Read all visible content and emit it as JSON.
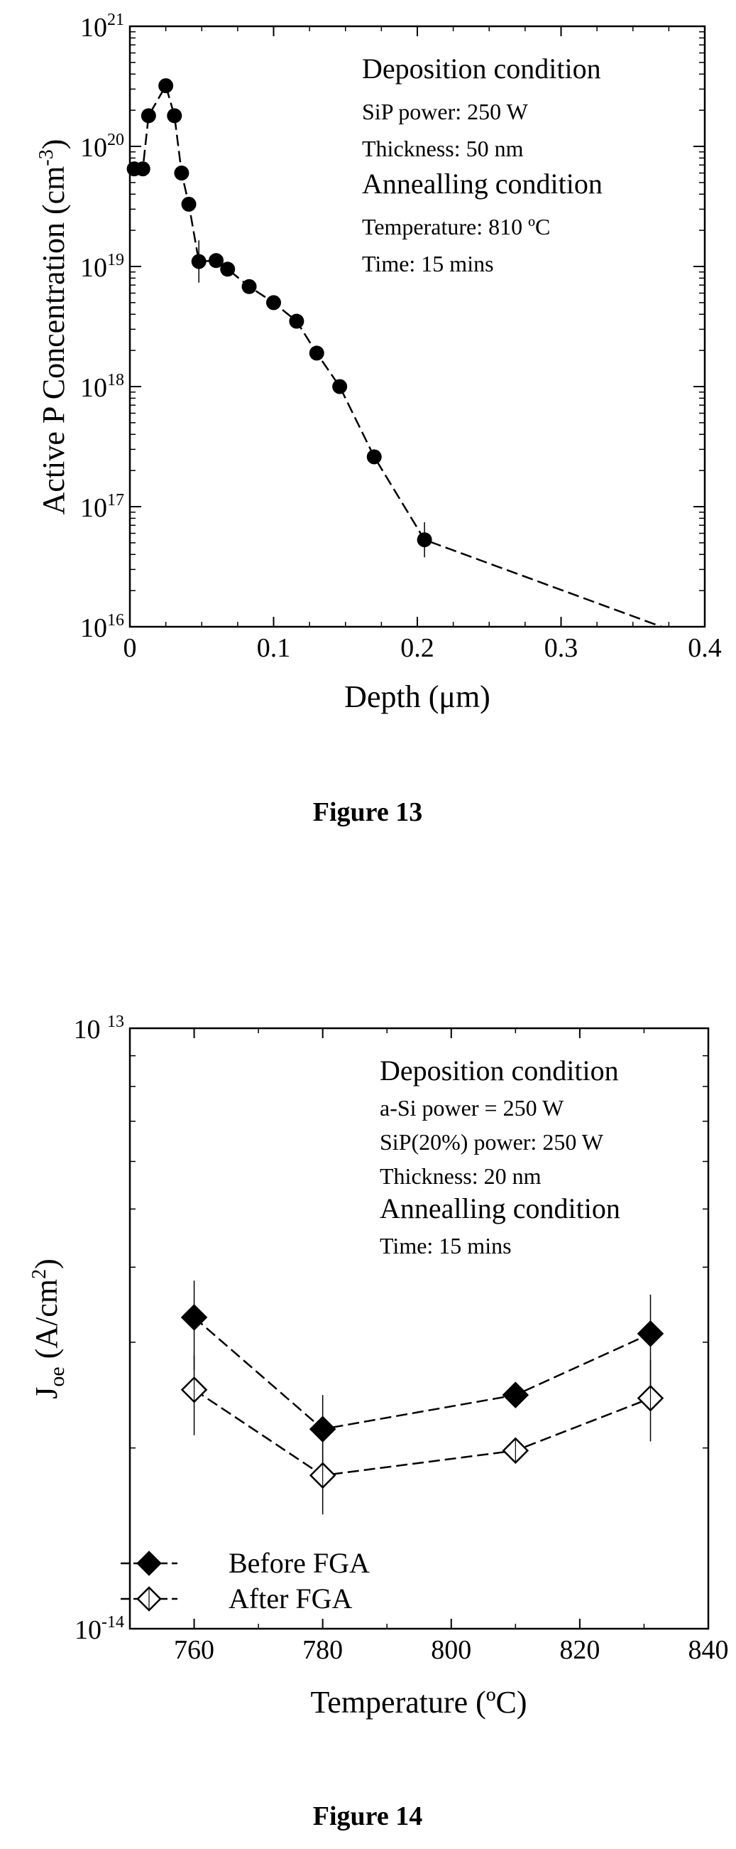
{
  "chart_data": [
    {
      "type": "line",
      "caption": "Figure 13",
      "xlabel": "Depth (μm)",
      "ylabel_main": "Active P Concentration (cm",
      "ylabel_sup": "-3",
      "ylabel_close": ")",
      "x_scale": "linear",
      "y_scale": "log",
      "xlim": [
        0,
        0.4
      ],
      "ylim": [
        1e+16,
        1e+21
      ],
      "x_ticks": [
        "0",
        "0.1",
        "0.2",
        "0.3",
        "0.4"
      ],
      "y_ticks": [
        {
          "base": "10",
          "exp": "16"
        },
        {
          "base": "10",
          "exp": "17"
        },
        {
          "base": "10",
          "exp": "18"
        },
        {
          "base": "10",
          "exp": "19"
        },
        {
          "base": "10",
          "exp": "20"
        },
        {
          "base": "10",
          "exp": "21"
        }
      ],
      "annotations": [
        {
          "text": "Deposition condition",
          "size": "large"
        },
        {
          "text": "SiP power: 250 W",
          "size": "small"
        },
        {
          "text": "Thickness: 50 nm",
          "size": "small"
        },
        {
          "text": "Annealling condition",
          "size": "large"
        },
        {
          "text": "Temperature: 810 ºC",
          "size": "small"
        },
        {
          "text": "Time: 15 mins",
          "size": "small"
        }
      ],
      "series": [
        {
          "marker": "filled-circle",
          "line": "dashed",
          "x": [
            0.003,
            0.009,
            0.013,
            0.025,
            0.031,
            0.036,
            0.041,
            0.048,
            0.06,
            0.068,
            0.083,
            0.1,
            0.116,
            0.13,
            0.146,
            0.17,
            0.205
          ],
          "y": [
            6.5e+19,
            6.5e+19,
            1.8e+20,
            3.2e+20,
            1.8e+20,
            6e+19,
            3.3e+19,
            1.1e+19,
            1.12e+19,
            9.5e+18,
            6.8e+18,
            5e+18,
            3.5e+18,
            1.9e+18,
            1e+18,
            2.6e+17,
            5.3e+16
          ],
          "error_y_factor": [
            1,
            1,
            1,
            1,
            1,
            1,
            1,
            1.5,
            1,
            1,
            1,
            1,
            1,
            1,
            1,
            1,
            1.4
          ]
        }
      ],
      "line_extension": {
        "x": [
          0.205,
          0.37
        ],
        "y": [
          5.3e+16,
          1e+16
        ]
      },
      "extra_error_bars": [
        {
          "x": 0.048,
          "y": 1.1e+19,
          "factor": 1.5
        }
      ]
    },
    {
      "type": "line",
      "caption": "Figure 14",
      "xlabel": "Temperature (ºC)",
      "ylabel_main": "J",
      "ylabel_sub": "oe",
      "ylabel_rest": " (A/cm",
      "ylabel_sup": "2",
      "ylabel_close": ")",
      "x_scale": "linear",
      "y_scale": "log",
      "xlim": [
        750,
        840
      ],
      "ylim": [
        1e-14,
        1e-13
      ],
      "x_ticks": [
        "760",
        "780",
        "800",
        "820",
        "840"
      ],
      "y_ticks": [
        {
          "base": "10",
          "exp": "-14"
        },
        {
          "base": "10 ",
          "exp": "13"
        }
      ],
      "annotations": [
        {
          "text": "Deposition condition",
          "size": "large"
        },
        {
          "text": "a-Si power = 250 W",
          "size": "small"
        },
        {
          "text": "SiP(20%) power: 250 W",
          "size": "small"
        },
        {
          "text": "Thickness: 20 nm",
          "size": "small"
        },
        {
          "text": "Annealling condition",
          "size": "large"
        },
        {
          "text": "Time: 15 mins",
          "size": "small"
        }
      ],
      "legend_position": "bottom-left",
      "series": [
        {
          "name": "Before FGA",
          "marker": "filled-diamond",
          "line": "dashed",
          "x": [
            760,
            780,
            810,
            831
          ],
          "y": [
            3.3e-14,
            2.15e-14,
            2.45e-14,
            3.1e-14
          ],
          "err_low": [
            2.7e-14,
            1.8e-14,
            2.45e-14,
            2.5e-14
          ],
          "err_high": [
            3.8e-14,
            2.45e-14,
            2.45e-14,
            3.6e-14
          ]
        },
        {
          "name": "After FGA",
          "marker": "open-diamond",
          "line": "dashed",
          "x": [
            760,
            780,
            810,
            831
          ],
          "y": [
            2.5e-14,
            1.8e-14,
            1.98e-14,
            2.42e-14
          ],
          "err_low": [
            2.1e-14,
            1.55e-14,
            1.98e-14,
            2.05e-14
          ],
          "err_high": [
            2.85e-14,
            2.05e-14,
            1.98e-14,
            2.8e-14
          ]
        }
      ]
    }
  ]
}
